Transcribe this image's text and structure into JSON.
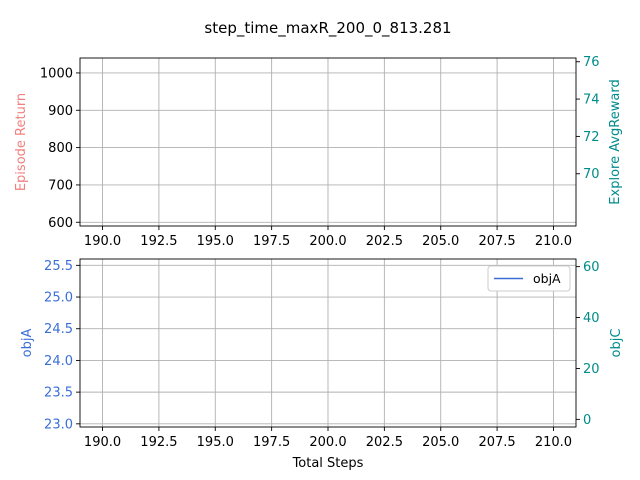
{
  "chart_data": {
    "title": "step_time_maxR_200_0_813.281",
    "xlabel": "Total Steps",
    "panels": [
      {
        "type": "line",
        "x_ticks": [
          "190.0",
          "192.5",
          "195.0",
          "197.5",
          "200.0",
          "202.5",
          "205.0",
          "207.5",
          "210.0"
        ],
        "x_tick_values": [
          190,
          192.5,
          195,
          197.5,
          200,
          202.5,
          205,
          207.5,
          210
        ],
        "xlim": [
          189,
          211
        ],
        "grid": true,
        "left_axis": {
          "label": "Episode Return",
          "color": "#f08080",
          "ylim": [
            590,
            1040
          ],
          "ticks": [
            "600",
            "700",
            "800",
            "900",
            "1000"
          ],
          "tick_values": [
            600,
            700,
            800,
            900,
            1000
          ],
          "tick_color": "#000000"
        },
        "right_axis": {
          "label": "Explore AvgReward",
          "color": "#008b8b",
          "ylim": [
            67.2,
            76.2
          ],
          "ticks": [
            "70",
            "72",
            "74",
            "76"
          ],
          "tick_values": [
            70,
            72,
            74,
            76
          ],
          "tick_color": "#008b8b"
        },
        "series": []
      },
      {
        "type": "line",
        "x_ticks": [
          "190.0",
          "192.5",
          "195.0",
          "197.5",
          "200.0",
          "202.5",
          "205.0",
          "207.5",
          "210.0"
        ],
        "x_tick_values": [
          190,
          192.5,
          195,
          197.5,
          200,
          202.5,
          205,
          207.5,
          210
        ],
        "xlim": [
          189,
          211
        ],
        "grid": true,
        "left_axis": {
          "label": "objA",
          "color": "#3b6fd6",
          "ylim": [
            22.95,
            25.6
          ],
          "ticks": [
            "23.0",
            "23.5",
            "24.0",
            "24.5",
            "25.0",
            "25.5"
          ],
          "tick_values": [
            23.0,
            23.5,
            24.0,
            24.5,
            25.0,
            25.5
          ],
          "tick_color": "#3b6fd6"
        },
        "right_axis": {
          "label": "objC",
          "color": "#008b8b",
          "ylim": [
            -3,
            63
          ],
          "ticks": [
            "0",
            "20",
            "40",
            "60"
          ],
          "tick_values": [
            0,
            20,
            40,
            60
          ],
          "tick_color": "#008b8b"
        },
        "legend": {
          "placement": "top-right",
          "entries": [
            {
              "label": "objA",
              "color": "#3b6fd6"
            }
          ]
        },
        "series": [
          {
            "name": "objA",
            "color": "#3b6fd6",
            "x": [],
            "y": []
          }
        ]
      }
    ]
  }
}
